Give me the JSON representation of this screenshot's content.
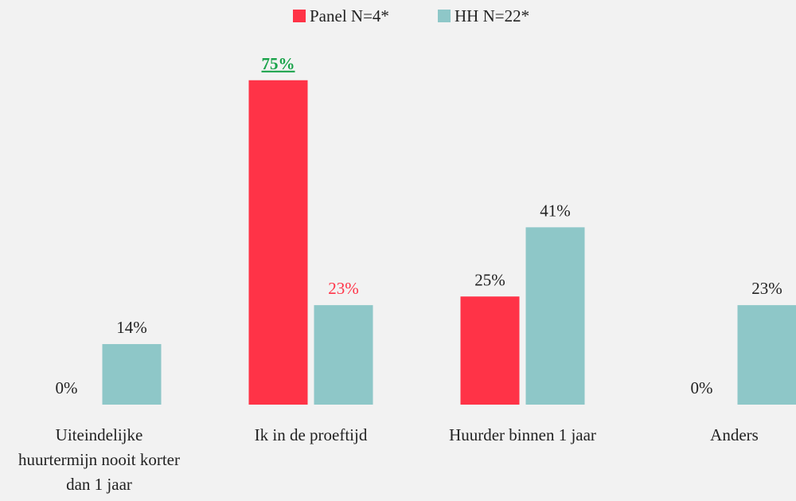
{
  "chart_data": {
    "type": "bar",
    "categories": [
      "Uiteindelijke huurtermijn nooit korter dan 1 jaar",
      "Ik in de proeftijd",
      "Huurder binnen 1 jaar",
      "Anders"
    ],
    "series": [
      {
        "name": "Panel N=4*",
        "color": "#ff3347",
        "values": [
          0,
          75,
          25,
          0
        ],
        "value_labels": [
          "0%",
          "75%",
          "25%",
          "0%"
        ]
      },
      {
        "name": "HH N=22*",
        "color": "#8ec7c8",
        "values": [
          14,
          23,
          41,
          23
        ],
        "value_labels": [
          "14%",
          "23%",
          "41%",
          "23%"
        ]
      }
    ],
    "legend": "top"
  }
}
